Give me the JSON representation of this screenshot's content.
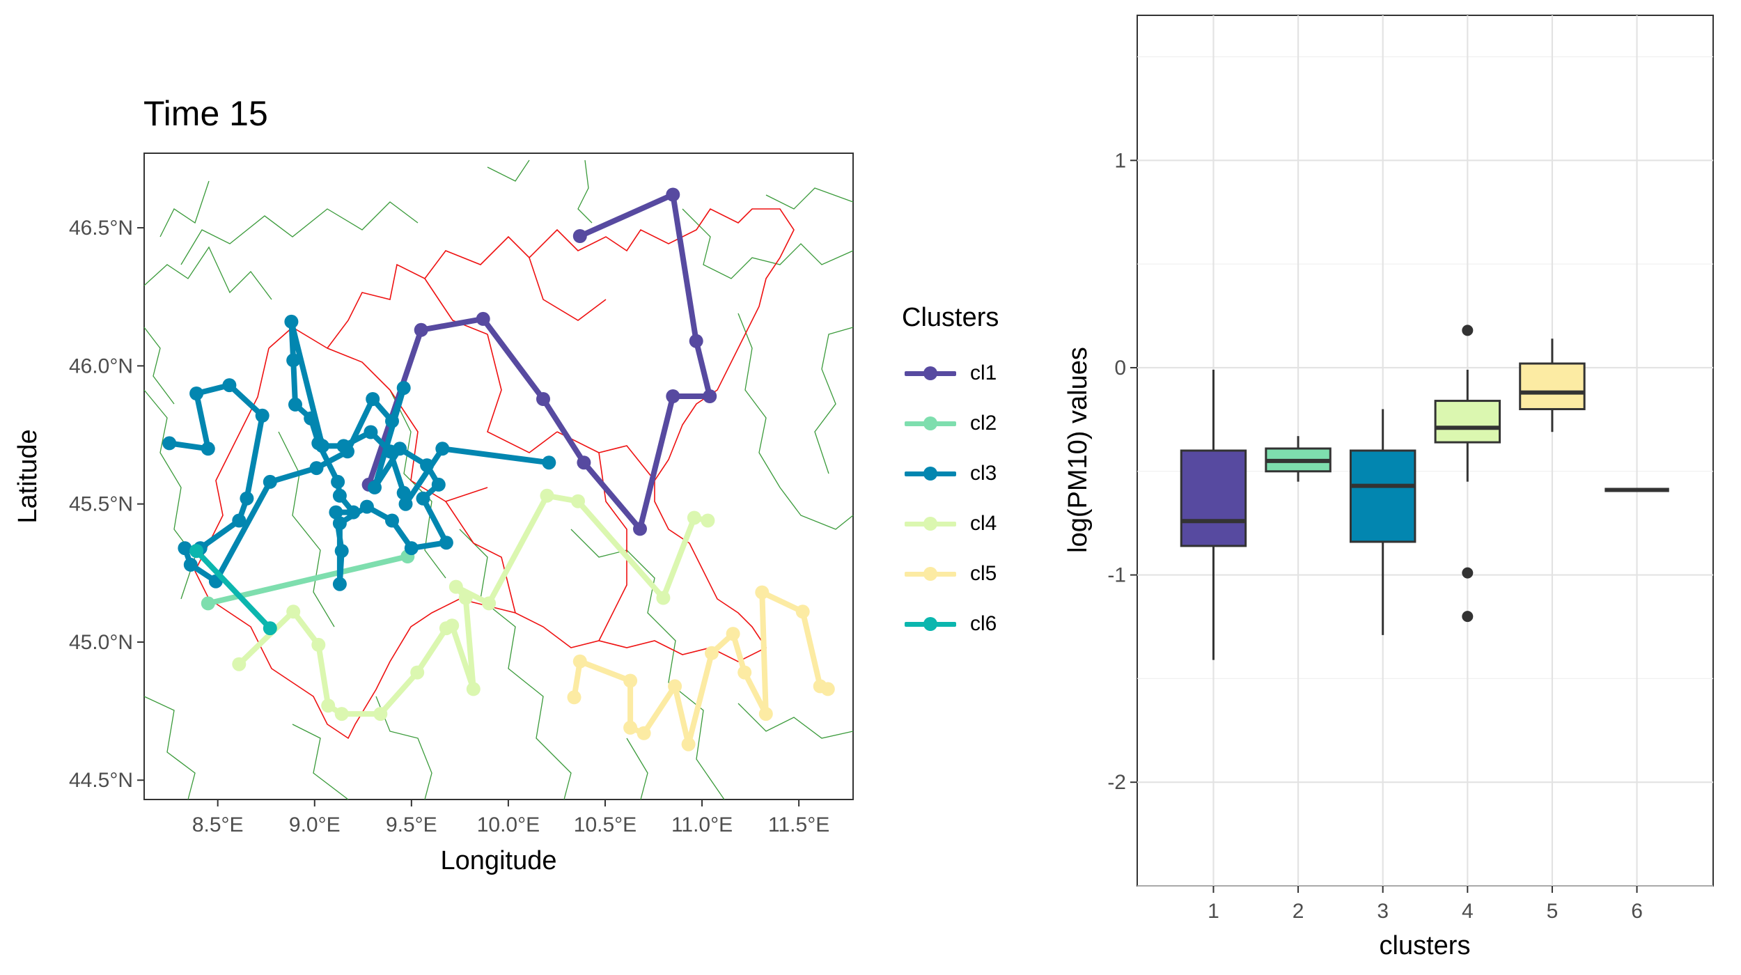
{
  "title": "Time 15",
  "legend": {
    "title": "Clusters",
    "items": [
      {
        "label": "cl1",
        "color": "#574AA0"
      },
      {
        "label": "cl2",
        "color": "#7EDEAE"
      },
      {
        "label": "cl3",
        "color": "#0286B0"
      },
      {
        "label": "cl4",
        "color": "#DBF7B0"
      },
      {
        "label": "cl5",
        "color": "#FCEBA3"
      },
      {
        "label": "cl6",
        "color": "#0BB6AE"
      }
    ]
  },
  "chart_data": [
    {
      "type": "line",
      "title": "Time 15",
      "xlabel": "Longitude",
      "ylabel": "Latitude",
      "xlim": [
        8.12,
        11.78
      ],
      "ylim": [
        44.43,
        46.77
      ],
      "x_ticks": [
        8.5,
        9.0,
        9.5,
        10.0,
        10.5,
        11.0,
        11.5
      ],
      "x_tick_labels": [
        "8.5°E",
        "9.0°E",
        "9.5°E",
        "10.0°E",
        "10.5°E",
        "11.0°E",
        "11.5°E"
      ],
      "y_ticks": [
        44.5,
        45.0,
        45.5,
        46.0,
        46.5
      ],
      "y_tick_labels": [
        "44.5°N",
        "45.0°N",
        "45.5°N",
        "46.0°N",
        "46.5°N"
      ],
      "background_layers": [
        "province borders (green)",
        "region border (red)"
      ],
      "series": [
        {
          "name": "cl1",
          "points": [
            [
              10.37,
              46.47
            ],
            [
              10.85,
              46.62
            ],
            [
              10.97,
              46.09
            ],
            [
              11.04,
              45.89
            ],
            [
              10.85,
              45.89
            ],
            [
              10.68,
              45.41
            ],
            [
              10.39,
              45.65
            ],
            [
              10.18,
              45.88
            ],
            [
              9.87,
              46.17
            ],
            [
              9.55,
              46.13
            ],
            [
              9.28,
              45.57
            ]
          ]
        },
        {
          "name": "cl2",
          "points": [
            [
              8.45,
              45.14
            ],
            [
              9.48,
              45.31
            ]
          ]
        },
        {
          "name": "cl3",
          "points": [
            [
              8.25,
              45.72
            ],
            [
              8.45,
              45.7
            ],
            [
              8.39,
              45.9
            ],
            [
              8.56,
              45.93
            ],
            [
              8.73,
              45.82
            ],
            [
              8.65,
              45.52
            ],
            [
              8.61,
              45.44
            ],
            [
              8.41,
              45.34
            ],
            [
              8.39,
              45.33
            ],
            [
              8.33,
              45.34
            ],
            [
              8.36,
              45.28
            ],
            [
              8.49,
              45.22
            ],
            [
              8.77,
              45.58
            ],
            [
              9.01,
              45.63
            ],
            [
              9.17,
              45.69
            ],
            [
              9.3,
              45.88
            ],
            [
              9.4,
              45.8
            ],
            [
              9.46,
              45.92
            ],
            [
              9.31,
              45.56
            ],
            [
              9.44,
              45.7
            ],
            [
              9.58,
              45.64
            ],
            [
              9.64,
              45.57
            ],
            [
              9.56,
              45.52
            ],
            [
              9.68,
              45.36
            ],
            [
              9.5,
              45.34
            ],
            [
              9.4,
              45.44
            ],
            [
              9.27,
              45.49
            ],
            [
              9.13,
              45.43
            ],
            [
              9.13,
              45.21
            ],
            [
              9.14,
              45.33
            ],
            [
              9.11,
              45.47
            ],
            [
              9.2,
              45.47
            ],
            [
              9.13,
              45.53
            ],
            [
              9.12,
              45.58
            ],
            [
              9.02,
              45.72
            ],
            [
              8.98,
              45.81
            ],
            [
              8.9,
              45.86
            ],
            [
              8.89,
              46.02
            ],
            [
              8.88,
              46.16
            ],
            [
              9.04,
              45.71
            ],
            [
              9.15,
              45.71
            ],
            [
              9.29,
              45.76
            ],
            [
              9.39,
              45.69
            ],
            [
              9.46,
              45.54
            ],
            [
              9.47,
              45.5
            ],
            [
              9.66,
              45.7
            ],
            [
              10.21,
              45.65
            ]
          ]
        },
        {
          "name": "cl4",
          "points": [
            [
              8.61,
              44.92
            ],
            [
              8.89,
              45.11
            ],
            [
              9.02,
              44.99
            ],
            [
              9.07,
              44.77
            ],
            [
              9.14,
              44.74
            ],
            [
              9.34,
              44.74
            ],
            [
              9.53,
              44.89
            ],
            [
              9.68,
              45.05
            ],
            [
              9.71,
              45.06
            ],
            [
              9.82,
              44.83
            ],
            [
              9.78,
              45.16
            ],
            [
              9.73,
              45.2
            ],
            [
              9.9,
              45.14
            ],
            [
              10.2,
              45.53
            ],
            [
              10.36,
              45.51
            ],
            [
              10.8,
              45.16
            ],
            [
              10.96,
              45.45
            ],
            [
              11.03,
              45.44
            ]
          ]
        },
        {
          "name": "cl5",
          "points": [
            [
              10.34,
              44.8
            ],
            [
              10.37,
              44.93
            ],
            [
              10.63,
              44.86
            ],
            [
              10.63,
              44.69
            ],
            [
              10.7,
              44.67
            ],
            [
              10.86,
              44.84
            ],
            [
              10.93,
              44.63
            ],
            [
              11.05,
              44.96
            ],
            [
              11.16,
              45.03
            ],
            [
              11.22,
              44.89
            ],
            [
              11.33,
              44.74
            ],
            [
              11.31,
              45.18
            ],
            [
              11.52,
              45.11
            ],
            [
              11.61,
              44.84
            ],
            [
              11.65,
              44.83
            ]
          ]
        },
        {
          "name": "cl6",
          "points": [
            [
              8.39,
              45.33
            ],
            [
              8.77,
              45.05
            ]
          ]
        }
      ]
    },
    {
      "type": "box",
      "xlabel": "clusters",
      "ylabel": "log(PM10) values",
      "ylim": [
        -2.5,
        1.7
      ],
      "y_ticks": [
        -2,
        -1,
        0,
        1
      ],
      "y_tick_labels": [
        "-2",
        "-1",
        "0",
        "1"
      ],
      "categories": [
        "1",
        "2",
        "3",
        "4",
        "5",
        "6"
      ],
      "boxes": [
        {
          "cluster": "1",
          "min": -1.41,
          "q1": -0.86,
          "median": -0.74,
          "q3": -0.4,
          "max": -0.01,
          "outliers": [],
          "color": "#574AA0"
        },
        {
          "cluster": "2",
          "min": -0.55,
          "q1": -0.5,
          "median": -0.45,
          "q3": -0.39,
          "max": -0.33,
          "outliers": [],
          "color": "#7EDEAE"
        },
        {
          "cluster": "3",
          "min": -1.29,
          "q1": -0.84,
          "median": -0.57,
          "q3": -0.4,
          "max": -0.2,
          "outliers": [],
          "color": "#0286B0"
        },
        {
          "cluster": "4",
          "min": -0.55,
          "q1": -0.36,
          "median": -0.29,
          "q3": -0.16,
          "max": -0.01,
          "outliers": [
            0.18,
            -0.99,
            -1.2
          ],
          "color": "#DBF7B0"
        },
        {
          "cluster": "5",
          "min": -0.31,
          "q1": -0.2,
          "median": -0.12,
          "q3": 0.02,
          "max": 0.14,
          "outliers": [],
          "color": "#FCEBA3"
        },
        {
          "cluster": "6",
          "min": -0.59,
          "q1": -0.59,
          "median": -0.59,
          "q3": -0.59,
          "max": -0.59,
          "outliers": [],
          "color": "#0BB6AE"
        }
      ]
    }
  ]
}
